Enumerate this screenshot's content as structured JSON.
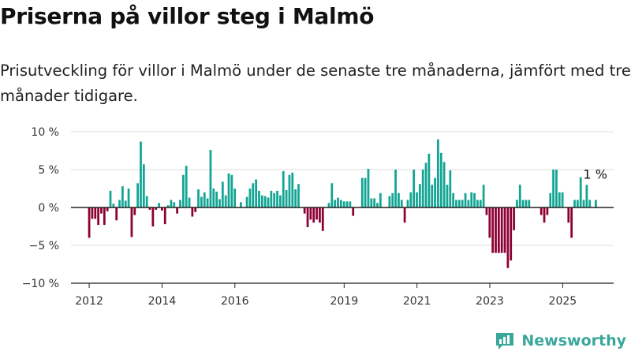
{
  "title": "Priserna på villor steg i Malmö",
  "subtitle": "Prisutveckling för villor i Malmö under de senaste tre månaderna, jämfört med tre månader tidigare.",
  "brand": {
    "name": "Newsworthy",
    "logo_icon": "bar-chart-logo-icon"
  },
  "colors": {
    "positive": "#12a594",
    "negative": "#8c0033",
    "axis": "#222222",
    "grid": "#dddddd"
  },
  "chart_data": {
    "type": "bar",
    "ylim": [
      -10,
      10
    ],
    "yticks": [
      10,
      5,
      0,
      -5,
      -10
    ],
    "ytick_labels": [
      "10 %",
      "5 %",
      "0 %",
      "−5 %",
      "−10 %"
    ],
    "xlim": [
      2011.5,
      2026.4
    ],
    "xticks": [
      {
        "x": 2012.0,
        "label": "2012"
      },
      {
        "x": 2014.0,
        "label": "2014"
      },
      {
        "x": 2016.0,
        "label": "2016"
      },
      {
        "x": 2019.0,
        "label": "2019"
      },
      {
        "x": 2021.0,
        "label": "2021"
      },
      {
        "x": 2023.0,
        "label": "2023"
      },
      {
        "x": 2025.0,
        "label": "2025"
      }
    ],
    "grid": true,
    "x_start": 2012.0,
    "x_step": 0.0833,
    "values": [
      -4,
      -1.5,
      -1.5,
      -2.3,
      -0.8,
      -2.3,
      -0.5,
      2.2,
      0.5,
      -1.7,
      1,
      2.8,
      0.9,
      2.5,
      -3.9,
      -1,
      3.2,
      8.7,
      5.7,
      1.5,
      -0.3,
      -2.5,
      -0.3,
      0.6,
      -0.4,
      -2.2,
      0.3,
      1,
      0.7,
      -0.8,
      1,
      4.3,
      5.5,
      1.3,
      -1.2,
      -0.6,
      2.4,
      1.4,
      2,
      1.2,
      7.6,
      2.5,
      2.1,
      1.1,
      3.4,
      1.6,
      4.5,
      4.3,
      2.5,
      0,
      0.7,
      0,
      1.4,
      2.5,
      3.2,
      3.7,
      2.2,
      1.6,
      1.5,
      1.3,
      2.2,
      1.9,
      2.2,
      1.6,
      4.8,
      2.3,
      4.3,
      4.6,
      2.4,
      3.1,
      0,
      -0.8,
      -2.6,
      -1.6,
      -2,
      -1.6,
      -2,
      -3.1,
      0,
      0.6,
      3.2,
      1,
      1.3,
      1,
      0.8,
      0.8,
      0.8,
      -1.1,
      0,
      0,
      3.9,
      3.9,
      5.1,
      1.2,
      1.2,
      0.6,
      1.9,
      0,
      0,
      1.5,
      1.9,
      5,
      1.9,
      1,
      -2,
      1,
      2,
      5,
      2,
      3.1,
      5,
      5.9,
      7.1,
      3,
      3.9,
      9,
      7.2,
      6,
      3,
      4.9,
      1.9,
      1,
      1,
      1,
      1.9,
      1,
      2,
      1.9,
      1,
      1,
      3,
      -1,
      -4,
      -6,
      -6,
      -6,
      -6,
      -6,
      -8,
      -7,
      -3,
      1,
      3,
      1,
      1,
      1,
      0,
      0,
      0,
      -1,
      -2,
      -1,
      1.9,
      5,
      5,
      2,
      2,
      0,
      -2,
      -4,
      1,
      1,
      4,
      1,
      3,
      1,
      0,
      1
    ],
    "last_value_label": "1 %"
  }
}
